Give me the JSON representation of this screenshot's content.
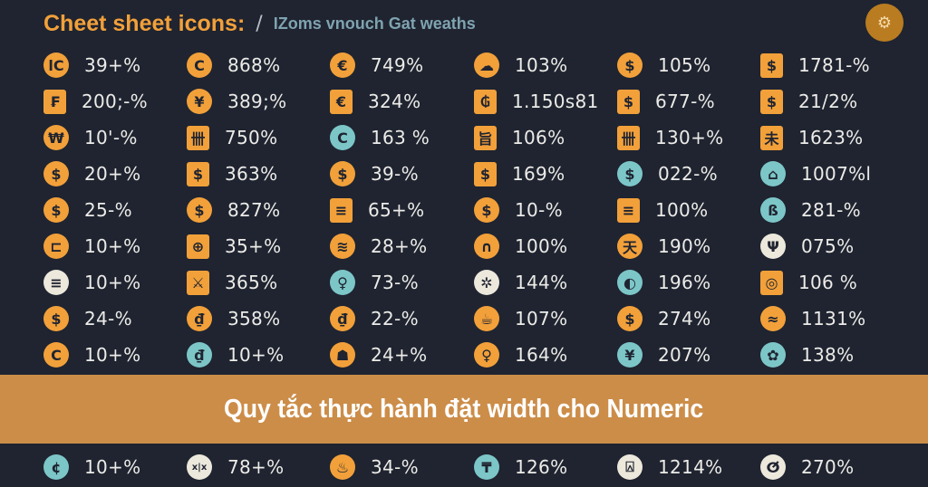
{
  "header": {
    "title": "Cheet sheet icons:",
    "separator": "/",
    "subtitle": "IZoms vnouch Gat weaths"
  },
  "badge_icon": "analytics-gear-icon",
  "banner": {
    "text": "Quy tắc thực hành đặt width cho Numeric",
    "color": "#d4944b"
  },
  "colors": {
    "background": "#1f2430",
    "orange": "#f2a03a",
    "teal": "#7cc6c8",
    "cream": "#ece8dc"
  },
  "rows": [
    [
      {
        "g": "lC",
        "s": "circle",
        "c": "orange",
        "v": "39+%"
      },
      {
        "g": "C",
        "s": "circle",
        "c": "orange",
        "v": "868%"
      },
      {
        "g": "€",
        "s": "circle",
        "c": "orange",
        "v": "749%"
      },
      {
        "g": "☁",
        "s": "circle",
        "c": "orange",
        "v": "103%"
      },
      {
        "g": "$",
        "s": "circle",
        "c": "orange",
        "v": "105%"
      },
      {
        "g": "$",
        "s": "square",
        "c": "orange",
        "v": "1781-%"
      }
    ],
    [
      {
        "g": "₣",
        "s": "square",
        "c": "orange",
        "v": "200;-%"
      },
      {
        "g": "¥",
        "s": "circle",
        "c": "orange",
        "v": "389;%"
      },
      {
        "g": "€",
        "s": "square",
        "c": "orange",
        "v": "324%"
      },
      {
        "g": "₲",
        "s": "square",
        "c": "orange",
        "v": "1.150s81"
      },
      {
        "g": "$",
        "s": "square",
        "c": "orange",
        "v": "677-%"
      },
      {
        "g": "$",
        "s": "square",
        "c": "orange",
        "v": "21/2%"
      }
    ],
    [
      {
        "g": "₩",
        "s": "circle",
        "c": "orange",
        "v": "10'-%"
      },
      {
        "g": "卌",
        "s": "square",
        "c": "orange",
        "v": "750%"
      },
      {
        "g": "C",
        "s": "circle",
        "c": "teal",
        "v": "163 %"
      },
      {
        "g": "旨",
        "s": "square",
        "c": "orange",
        "v": "106%"
      },
      {
        "g": "卌",
        "s": "square",
        "c": "orange",
        "v": "130+%"
      },
      {
        "g": "未",
        "s": "square",
        "c": "orange",
        "v": "1623%"
      }
    ],
    [
      {
        "g": "$",
        "s": "circle",
        "c": "orange",
        "v": "20+%"
      },
      {
        "g": "$",
        "s": "square",
        "c": "orange",
        "v": "363%"
      },
      {
        "g": "$",
        "s": "circle",
        "c": "orange",
        "v": "39-%"
      },
      {
        "g": "$",
        "s": "square",
        "c": "orange",
        "v": "169%"
      },
      {
        "g": "$",
        "s": "circle",
        "c": "teal",
        "v": "022-%"
      },
      {
        "g": "⌂",
        "s": "circle",
        "c": "teal",
        "v": "1007%l"
      }
    ],
    [
      {
        "g": "$",
        "s": "circle",
        "c": "orange",
        "v": "25-%"
      },
      {
        "g": "$",
        "s": "circle",
        "c": "orange",
        "v": "827%"
      },
      {
        "g": "≡",
        "s": "square",
        "c": "orange",
        "v": "65+%"
      },
      {
        "g": "$",
        "s": "circle",
        "c": "orange",
        "v": "10-%"
      },
      {
        "g": "≡",
        "s": "square",
        "c": "orange",
        "v": "100%"
      },
      {
        "g": "ß",
        "s": "circle",
        "c": "teal",
        "v": "281-%"
      }
    ],
    [
      {
        "g": "⊏",
        "s": "circle",
        "c": "orange",
        "v": "10+%"
      },
      {
        "g": "⊕",
        "s": "square",
        "c": "orange",
        "v": "35+%"
      },
      {
        "g": "≋",
        "s": "circle",
        "c": "orange",
        "v": "28+%"
      },
      {
        "g": "∩",
        "s": "circle",
        "c": "orange",
        "v": "100%"
      },
      {
        "g": "天",
        "s": "circle",
        "c": "orange",
        "v": "190%"
      },
      {
        "g": "Ψ",
        "s": "circle",
        "c": "cream",
        "v": "075%"
      }
    ],
    [
      {
        "g": "≡",
        "s": "circle",
        "c": "cream",
        "v": "10+%"
      },
      {
        "g": "⚔",
        "s": "square",
        "c": "orange",
        "v": "365%"
      },
      {
        "g": "♀",
        "s": "circle",
        "c": "teal",
        "v": "73-%"
      },
      {
        "g": "✲",
        "s": "circle",
        "c": "cream",
        "v": "144%"
      },
      {
        "g": "◐",
        "s": "circle",
        "c": "teal",
        "v": "196%"
      },
      {
        "g": "◎",
        "s": "square",
        "c": "orange",
        "v": "106 %"
      }
    ],
    [
      {
        "g": "$",
        "s": "circle",
        "c": "orange",
        "v": "24-%"
      },
      {
        "g": "₫",
        "s": "circle",
        "c": "orange",
        "v": "358%"
      },
      {
        "g": "₫",
        "s": "circle",
        "c": "orange",
        "v": "22-%"
      },
      {
        "g": "☕",
        "s": "circle",
        "c": "orange",
        "v": "107%"
      },
      {
        "g": "$",
        "s": "circle",
        "c": "orange",
        "v": "274%"
      },
      {
        "g": "≈",
        "s": "circle",
        "c": "orange",
        "v": "1131%"
      }
    ],
    [
      {
        "g": "C",
        "s": "circle",
        "c": "orange",
        "v": "10+%"
      },
      {
        "g": "₫",
        "s": "circle",
        "c": "teal",
        "v": "10+%"
      },
      {
        "g": "☗",
        "s": "circle",
        "c": "orange",
        "v": "24+%"
      },
      {
        "g": "♀",
        "s": "circle",
        "c": "orange",
        "v": "164%"
      },
      {
        "g": "¥",
        "s": "circle",
        "c": "teal",
        "v": "207%"
      },
      {
        "g": "✿",
        "s": "circle",
        "c": "teal",
        "v": "138%"
      }
    ],
    [
      {
        "g": "¢",
        "s": "circle",
        "c": "teal",
        "v": "10+%"
      },
      {
        "g": "x|x",
        "s": "circle",
        "c": "cream",
        "v": "78+%"
      },
      {
        "g": "♨",
        "s": "circle",
        "c": "orange",
        "v": "34-%"
      },
      {
        "g": "₸",
        "s": "circle",
        "c": "teal",
        "v": "126%"
      },
      {
        "g": "⍓",
        "s": "circle",
        "c": "cream",
        "v": "1214%"
      },
      {
        "g": "ⵚ",
        "s": "circle",
        "c": "cream",
        "v": "270%"
      }
    ]
  ]
}
